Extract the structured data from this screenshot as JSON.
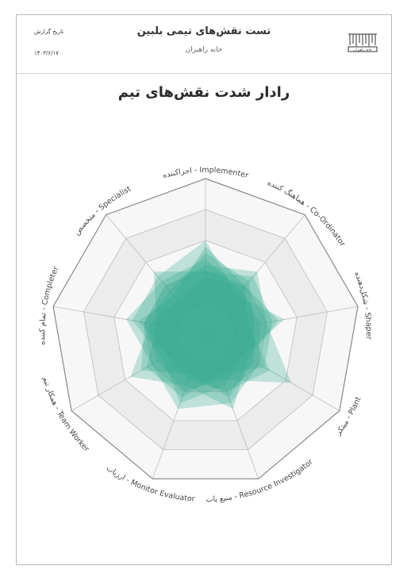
{
  "header": {
    "report_title": "تست نقش‌های تیمی بلبین",
    "org_name": "خانه راهبران",
    "date_label": "تاریخ گزارش",
    "date_value": "۱۴۰۳/۶/۱۷",
    "logo_text": "خانه راهبران"
  },
  "colors": {
    "fill": "#2fa98c",
    "grid": "#bdbdbd",
    "band_light": "#f7f7f7",
    "band_dark": "#ececec",
    "outline": "#8a8a8a"
  },
  "chart_data": {
    "type": "radar",
    "title": "رادار شدت نقش‌های تیم",
    "axes": [
      "اجراکننده - Implementer",
      "هماهنگ کننده - Co-Ordinator",
      "شکل‌دهنده - Shaper",
      "مبتکر - Plant",
      "منبع یاب - Resource Investigator",
      "ارزیاب - Monitor Evaluator",
      "همکار تیم - Team Worker",
      "تمام کننده - Completer",
      "متخصص - Specialist"
    ],
    "rmax": 5,
    "grid_levels": 5,
    "series": [
      {
        "values": [
          2.6,
          2.2,
          1.6,
          1.8,
          2.2,
          1.4,
          2.4,
          2.0,
          1.8
        ]
      },
      {
        "values": [
          3.0,
          1.6,
          2.6,
          1.4,
          1.8,
          2.4,
          1.6,
          2.4,
          2.4
        ]
      },
      {
        "values": [
          2.2,
          2.6,
          2.0,
          3.2,
          1.6,
          2.0,
          1.8,
          2.0,
          2.0
        ]
      },
      {
        "values": [
          1.8,
          2.0,
          2.4,
          1.6,
          2.6,
          1.8,
          2.8,
          1.8,
          1.4
        ]
      },
      {
        "values": [
          2.4,
          1.8,
          1.8,
          2.0,
          2.4,
          2.6,
          2.0,
          2.6,
          2.2
        ]
      },
      {
        "values": [
          2.0,
          2.4,
          2.2,
          2.2,
          1.4,
          2.2,
          2.2,
          1.6,
          2.6
        ]
      },
      {
        "values": [
          2.8,
          2.0,
          1.4,
          2.4,
          2.0,
          1.6,
          1.4,
          2.2,
          1.6
        ]
      }
    ]
  }
}
